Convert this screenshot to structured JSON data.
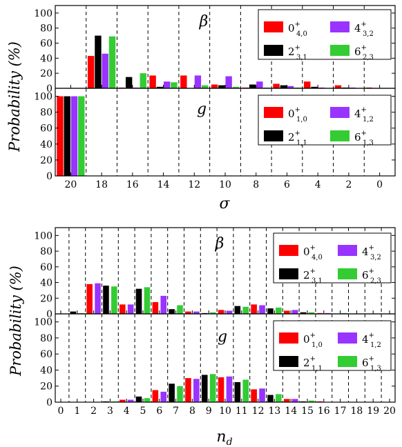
{
  "figure": {
    "ylabel": "Probability (%)",
    "legend_top": [
      {
        "base": "0",
        "sup": "+",
        "sub": "4,0",
        "color": "#ff0000"
      },
      {
        "base": "4",
        "sup": "+",
        "sub": "3,2",
        "color": "#9933ff"
      },
      {
        "base": "2",
        "sup": "+",
        "sub": "3,1",
        "color": "#000000"
      },
      {
        "base": "6",
        "sup": "+",
        "sub": "2,3",
        "color": "#33cc33"
      }
    ],
    "legend_bottom": [
      {
        "base": "0",
        "sup": "+",
        "sub": "1,0",
        "color": "#ff0000"
      },
      {
        "base": "4",
        "sup": "+",
        "sub": "1,2",
        "color": "#9933ff"
      },
      {
        "base": "2",
        "sup": "+",
        "sub": "1,1",
        "color": "#000000"
      },
      {
        "base": "6",
        "sup": "+",
        "sub": "1,3",
        "color": "#33cc33"
      }
    ]
  },
  "chart_data": [
    {
      "type": "bar",
      "label": "β",
      "xlabel": "σ",
      "x_ticks": [
        "20",
        "18",
        "16",
        "14",
        "12",
        "10",
        "8",
        "6",
        "4",
        "2",
        "0"
      ],
      "ylim": [
        0,
        110
      ],
      "y_ticks": [
        0,
        20,
        40,
        60,
        80,
        100
      ],
      "grid": "vertical dashed",
      "legend": "top-right",
      "series": [
        {
          "name": "0+4,0",
          "values": [
            0,
            43,
            1,
            17,
            17,
            5,
            1,
            6,
            9,
            4,
            1
          ]
        },
        {
          "name": "2+3,1",
          "values": [
            0,
            70,
            15,
            2,
            0,
            4,
            5,
            4,
            2,
            1,
            0
          ]
        },
        {
          "name": "4+3,2",
          "values": [
            0,
            46,
            1,
            9,
            17,
            16,
            9,
            3,
            1,
            1,
            0
          ]
        },
        {
          "name": "6+2,3",
          "values": [
            0,
            69,
            20,
            8,
            4,
            2,
            1,
            1,
            0,
            0,
            0
          ]
        }
      ]
    },
    {
      "type": "bar",
      "label": "g",
      "xlabel": "σ",
      "x_ticks": [
        "20",
        "18",
        "16",
        "14",
        "12",
        "10",
        "8",
        "6",
        "4",
        "2",
        "0"
      ],
      "ylim": [
        0,
        110
      ],
      "y_ticks": [
        0,
        20,
        40,
        60,
        80,
        100
      ],
      "grid": "vertical dashed",
      "legend": "top-right",
      "series": [
        {
          "name": "0+1,0",
          "values": [
            100,
            0,
            0,
            0,
            0,
            0,
            0,
            0,
            0,
            0,
            0
          ]
        },
        {
          "name": "2+1,1",
          "values": [
            100,
            0,
            0,
            0,
            0,
            0,
            0,
            0,
            0,
            0,
            0
          ]
        },
        {
          "name": "4+1,2",
          "values": [
            100,
            0,
            0,
            0,
            0,
            0,
            0,
            0,
            0,
            0,
            0
          ]
        },
        {
          "name": "6+1,3",
          "values": [
            100,
            0,
            0,
            0,
            0,
            0,
            0,
            0,
            0,
            0,
            0
          ]
        }
      ]
    },
    {
      "type": "bar",
      "label": "β",
      "xlabel": "n_d",
      "x_ticks": [
        "0",
        "1",
        "2",
        "3",
        "4",
        "5",
        "6",
        "7",
        "8",
        "9",
        "10",
        "11",
        "12",
        "13",
        "14",
        "15",
        "16",
        "17",
        "18",
        "19",
        "20"
      ],
      "ylim": [
        0,
        110
      ],
      "y_ticks": [
        0,
        20,
        40,
        60,
        80,
        100
      ],
      "grid": "vertical dashed",
      "legend": "top-right",
      "series": [
        {
          "name": "0+4,0",
          "values": [
            0,
            0,
            38,
            0,
            12,
            0,
            15,
            0,
            3,
            0,
            5,
            0,
            12,
            0,
            4,
            0,
            1,
            0,
            0,
            0,
            0
          ]
        },
        {
          "name": "2+3,1",
          "values": [
            0,
            3,
            0,
            36,
            0,
            32,
            0,
            6,
            0,
            1,
            0,
            10,
            0,
            7,
            0,
            2,
            0,
            0,
            0,
            0,
            0
          ]
        },
        {
          "name": "4+3,2",
          "values": [
            0,
            0,
            39,
            0,
            12,
            0,
            23,
            0,
            3,
            0,
            4,
            0,
            11,
            0,
            5,
            0,
            1,
            0,
            0,
            0,
            0
          ]
        },
        {
          "name": "6+2,3",
          "values": [
            0,
            1,
            0,
            35,
            0,
            34,
            0,
            11,
            0,
            2,
            0,
            9,
            0,
            8,
            0,
            2,
            0,
            1,
            0,
            0,
            0
          ]
        }
      ]
    },
    {
      "type": "bar",
      "label": "g",
      "xlabel": "n_d",
      "x_ticks": [
        "0",
        "1",
        "2",
        "3",
        "4",
        "5",
        "6",
        "7",
        "8",
        "9",
        "10",
        "11",
        "12",
        "13",
        "14",
        "15",
        "16",
        "17",
        "18",
        "19",
        "20"
      ],
      "ylim": [
        0,
        110
      ],
      "y_ticks": [
        0,
        20,
        40,
        60,
        80,
        100
      ],
      "grid": "vertical dashed",
      "legend": "top-right",
      "series": [
        {
          "name": "0+1,0",
          "values": [
            0,
            0,
            0,
            0,
            3,
            0,
            15,
            0,
            30,
            0,
            31,
            0,
            16,
            0,
            4,
            0,
            1,
            0,
            0,
            0,
            0
          ]
        },
        {
          "name": "2+1,1",
          "values": [
            0,
            0,
            0,
            1,
            0,
            7,
            0,
            23,
            0,
            34,
            0,
            25,
            0,
            9,
            0,
            1,
            0,
            0,
            0,
            0,
            0
          ]
        },
        {
          "name": "4+1,2",
          "values": [
            0,
            0,
            0,
            0,
            3,
            0,
            13,
            0,
            29,
            0,
            32,
            0,
            17,
            0,
            4,
            0,
            0,
            0,
            0,
            0,
            0
          ]
        },
        {
          "name": "6+1,3",
          "values": [
            0,
            0,
            0,
            1,
            0,
            5,
            0,
            20,
            0,
            35,
            0,
            28,
            0,
            10,
            0,
            2,
            0,
            0,
            0,
            0,
            0
          ]
        }
      ]
    }
  ]
}
